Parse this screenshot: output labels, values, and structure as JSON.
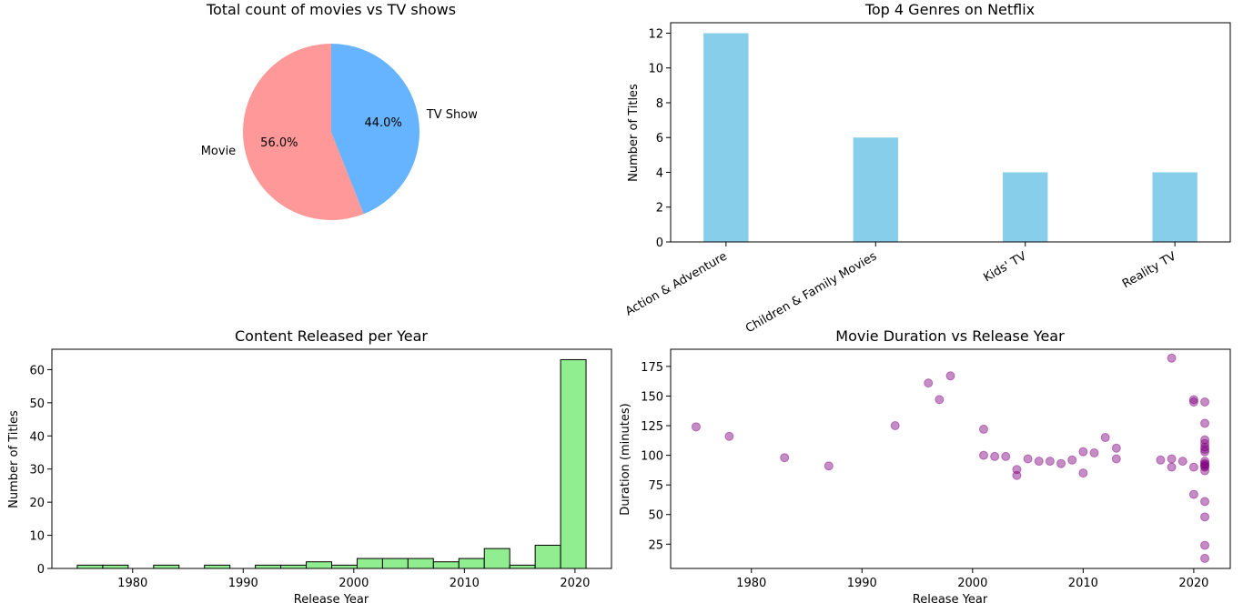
{
  "chart_data": [
    {
      "type": "pie",
      "title": "Total count of movies vs TV shows",
      "labels": [
        "Movie",
        "TV Show"
      ],
      "values": [
        56.0,
        44.0
      ],
      "pct_labels": [
        "56.0%",
        "44.0%"
      ],
      "colors": [
        "#ff9999",
        "#66b3ff"
      ]
    },
    {
      "type": "bar",
      "title": "Top 4 Genres on Netflix",
      "ylabel": "Number of Titles",
      "xlabel": "",
      "categories": [
        "Action & Adventure",
        "Children & Family Movies",
        "Kids' TV",
        "Reality TV"
      ],
      "values": [
        12,
        6,
        4,
        4
      ],
      "ylim": [
        0,
        12.6
      ],
      "yticks": [
        "0",
        "2",
        "4",
        "6",
        "8",
        "10",
        "12"
      ],
      "color": "#87ceeb"
    },
    {
      "type": "bar",
      "subtype": "histogram",
      "title": "Content Released per Year",
      "xlabel": "Release Year",
      "ylabel": "Number of Titles",
      "bin_start": 1975,
      "bin_width": 2.3,
      "values": [
        1,
        1,
        0,
        1,
        0,
        1,
        0,
        1,
        1,
        2,
        1,
        3,
        3,
        3,
        2,
        3,
        6,
        1,
        7,
        63
      ],
      "xlim": [
        1972.7,
        2023.3
      ],
      "ylim": [
        0,
        66.15
      ],
      "xticks": [
        "1980",
        "1990",
        "2000",
        "2010",
        "2020"
      ],
      "yticks": [
        "0",
        "10",
        "20",
        "30",
        "40",
        "50",
        "60"
      ],
      "color": "#90ee90"
    },
    {
      "type": "scatter",
      "title": "Movie Duration vs Release Year",
      "xlabel": "Release Year",
      "ylabel": "Duration (minutes)",
      "xlim": [
        1972.7,
        2023.3
      ],
      "ylim": [
        4.5,
        189.5
      ],
      "xticks": [
        "1980",
        "1990",
        "2000",
        "2010",
        "2020"
      ],
      "yticks": [
        "25",
        "50",
        "75",
        "100",
        "125",
        "150",
        "175"
      ],
      "color": "#800080",
      "x": [
        1975,
        1978,
        1983,
        1987,
        1993,
        1996,
        1997,
        1998,
        2001,
        2001,
        2002,
        2003,
        2004,
        2004,
        2005,
        2006,
        2007,
        2008,
        2009,
        2010,
        2010,
        2011,
        2012,
        2013,
        2013,
        2017,
        2018,
        2018,
        2018,
        2019,
        2020,
        2020,
        2020,
        2020,
        2021,
        2021,
        2021,
        2021,
        2021,
        2021,
        2021,
        2021,
        2021,
        2021,
        2021,
        2021,
        2021,
        2021,
        2021,
        2021,
        2021
      ],
      "y": [
        124,
        116,
        98,
        91,
        125,
        161,
        147,
        167,
        122,
        100,
        99,
        99,
        88,
        83,
        97,
        95,
        95,
        93,
        96,
        103,
        85,
        102,
        115,
        106,
        97,
        96,
        182,
        97,
        90,
        95,
        147,
        145,
        90,
        67,
        145,
        127,
        113,
        110,
        107,
        105,
        103,
        95,
        93,
        92,
        91,
        90,
        87,
        61,
        48,
        24,
        13
      ]
    }
  ]
}
